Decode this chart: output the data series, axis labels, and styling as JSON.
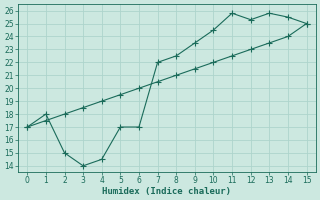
{
  "xlabel": "Humidex (Indice chaleur)",
  "bg_color": "#cce8e0",
  "line_color": "#1a6b5a",
  "grid_color": "#aed4cc",
  "line1_x": [
    0,
    1,
    2,
    3,
    4,
    5,
    6,
    7,
    8,
    9,
    10,
    11,
    12,
    13,
    14,
    15
  ],
  "line1_y": [
    17,
    18,
    15,
    14,
    14.5,
    17,
    17,
    22,
    22.5,
    23.5,
    24.5,
    25.8,
    25.3,
    25.8,
    25.5,
    25
  ],
  "line2_x": [
    0,
    1,
    2,
    3,
    4,
    5,
    6,
    7,
    8,
    9,
    10,
    11,
    12,
    13,
    14,
    15
  ],
  "line2_y": [
    17,
    17.5,
    18.0,
    18.5,
    19.0,
    19.5,
    20.0,
    20.5,
    21.0,
    21.5,
    22.0,
    22.5,
    23.0,
    23.5,
    24.0,
    25.0
  ],
  "xlim": [
    -0.5,
    15.5
  ],
  "ylim": [
    13.5,
    26.5
  ],
  "yticks": [
    14,
    15,
    16,
    17,
    18,
    19,
    20,
    21,
    22,
    23,
    24,
    25,
    26
  ],
  "xticks": [
    0,
    1,
    2,
    3,
    4,
    5,
    6,
    7,
    8,
    9,
    10,
    11,
    12,
    13,
    14,
    15
  ],
  "tick_fontsize": 5.5,
  "label_fontsize": 6.5
}
